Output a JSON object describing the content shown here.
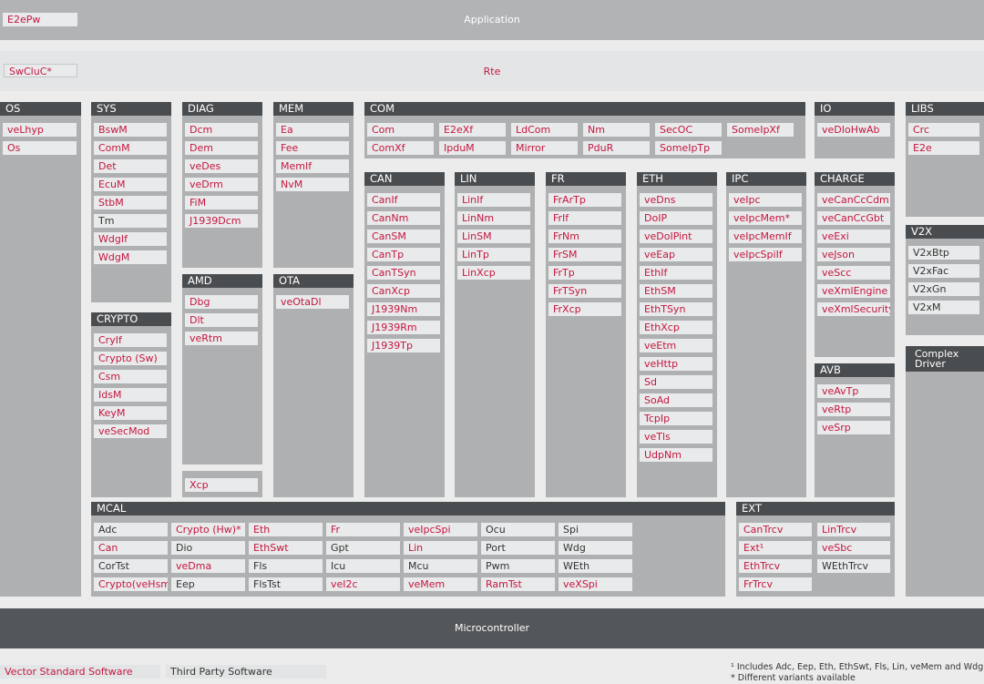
{
  "colors": {
    "vector_red": "#c4173f",
    "third_party": "#333333",
    "module_bg": "#e9eaeb",
    "group_bg": "#aeb0b2",
    "header_bg": "#4a4d50"
  },
  "application": {
    "label": "Application",
    "e2epw": "E2ePw"
  },
  "rte": {
    "label": "Rte",
    "swcluc": "SwCluC*"
  },
  "microcontroller": {
    "label": "Microcontroller"
  },
  "legend": {
    "vector": "Vector Standard Software",
    "third": "Third Party Software"
  },
  "notes": {
    "note1": "¹ Includes Adc, Eep, Eth, EthSwt, Fls, Lin, veMem and Wdg",
    "note2": "* Different variants available"
  },
  "os": {
    "title": "OS",
    "items": [
      {
        "label": "veLhyp",
        "vendor": "vector"
      },
      {
        "label": "Os",
        "vendor": "vector"
      }
    ]
  },
  "sys": {
    "title": "SYS",
    "items": [
      {
        "label": "BswM",
        "vendor": "vector"
      },
      {
        "label": "ComM",
        "vendor": "vector"
      },
      {
        "label": "Det",
        "vendor": "vector"
      },
      {
        "label": "EcuM",
        "vendor": "vector"
      },
      {
        "label": "StbM",
        "vendor": "vector"
      },
      {
        "label": "Tm",
        "vendor": "third"
      },
      {
        "label": "WdgIf",
        "vendor": "vector"
      },
      {
        "label": "WdgM",
        "vendor": "vector"
      }
    ]
  },
  "crypto": {
    "title": "CRYPTO",
    "items": [
      {
        "label": "CryIf",
        "vendor": "vector"
      },
      {
        "label": "Crypto (Sw)",
        "vendor": "vector"
      },
      {
        "label": "Csm",
        "vendor": "vector"
      },
      {
        "label": "IdsM",
        "vendor": "vector"
      },
      {
        "label": "KeyM",
        "vendor": "vector"
      },
      {
        "label": "veSecMod",
        "vendor": "vector"
      }
    ]
  },
  "diag": {
    "title": "DIAG",
    "items": [
      {
        "label": "Dcm",
        "vendor": "vector"
      },
      {
        "label": "Dem",
        "vendor": "vector"
      },
      {
        "label": "veDes",
        "vendor": "vector"
      },
      {
        "label": "veDrm",
        "vendor": "vector"
      },
      {
        "label": "FiM",
        "vendor": "vector"
      },
      {
        "label": "J1939Dcm",
        "vendor": "vector"
      }
    ]
  },
  "amd": {
    "title": "AMD",
    "items": [
      {
        "label": "Dbg",
        "vendor": "vector"
      },
      {
        "label": "Dlt",
        "vendor": "vector"
      },
      {
        "label": "veRtm",
        "vendor": "vector"
      }
    ],
    "xcp": "Xcp"
  },
  "mem": {
    "title": "MEM",
    "items": [
      {
        "label": "Ea",
        "vendor": "vector"
      },
      {
        "label": "Fee",
        "vendor": "vector"
      },
      {
        "label": "MemIf",
        "vendor": "vector"
      },
      {
        "label": "NvM",
        "vendor": "vector"
      }
    ]
  },
  "ota": {
    "title": "OTA",
    "items": [
      {
        "label": "veOtaDl",
        "vendor": "vector"
      }
    ]
  },
  "com": {
    "title": "COM",
    "items": [
      {
        "label": "Com",
        "vendor": "vector"
      },
      {
        "label": "E2eXf",
        "vendor": "vector"
      },
      {
        "label": "LdCom",
        "vendor": "vector"
      },
      {
        "label": "Nm",
        "vendor": "vector"
      },
      {
        "label": "SecOC",
        "vendor": "vector"
      },
      {
        "label": "SomeIpXf",
        "vendor": "vector"
      },
      {
        "label": "ComXf",
        "vendor": "vector"
      },
      {
        "label": "IpduM",
        "vendor": "vector"
      },
      {
        "label": "Mirror",
        "vendor": "vector"
      },
      {
        "label": "PduR",
        "vendor": "vector"
      },
      {
        "label": "SomeIpTp",
        "vendor": "vector"
      }
    ]
  },
  "can": {
    "title": "CAN",
    "items": [
      {
        "label": "CanIf",
        "vendor": "vector"
      },
      {
        "label": "CanNm",
        "vendor": "vector"
      },
      {
        "label": "CanSM",
        "vendor": "vector"
      },
      {
        "label": "CanTp",
        "vendor": "vector"
      },
      {
        "label": "CanTSyn",
        "vendor": "vector"
      },
      {
        "label": "CanXcp",
        "vendor": "vector"
      },
      {
        "label": "J1939Nm",
        "vendor": "vector"
      },
      {
        "label": "J1939Rm",
        "vendor": "vector"
      },
      {
        "label": "J1939Tp",
        "vendor": "vector"
      }
    ]
  },
  "lin": {
    "title": "LIN",
    "items": [
      {
        "label": "LinIf",
        "vendor": "vector"
      },
      {
        "label": "LinNm",
        "vendor": "vector"
      },
      {
        "label": "LinSM",
        "vendor": "vector"
      },
      {
        "label": "LinTp",
        "vendor": "vector"
      },
      {
        "label": "LinXcp",
        "vendor": "vector"
      }
    ]
  },
  "fr": {
    "title": "FR",
    "items": [
      {
        "label": "FrArTp",
        "vendor": "vector"
      },
      {
        "label": "FrIf",
        "vendor": "vector"
      },
      {
        "label": "FrNm",
        "vendor": "vector"
      },
      {
        "label": "FrSM",
        "vendor": "vector"
      },
      {
        "label": "FrTp",
        "vendor": "vector"
      },
      {
        "label": "FrTSyn",
        "vendor": "vector"
      },
      {
        "label": "FrXcp",
        "vendor": "vector"
      }
    ]
  },
  "eth": {
    "title": "ETH",
    "items": [
      {
        "label": "veDns",
        "vendor": "vector"
      },
      {
        "label": "DoIP",
        "vendor": "vector"
      },
      {
        "label": "veDoIPint",
        "vendor": "vector"
      },
      {
        "label": "veEap",
        "vendor": "vector"
      },
      {
        "label": "EthIf",
        "vendor": "vector"
      },
      {
        "label": "EthSM",
        "vendor": "vector"
      },
      {
        "label": "EthTSyn",
        "vendor": "vector"
      },
      {
        "label": "EthXcp",
        "vendor": "vector"
      },
      {
        "label": "veEtm",
        "vendor": "vector"
      },
      {
        "label": "veHttp",
        "vendor": "vector"
      },
      {
        "label": "Sd",
        "vendor": "vector"
      },
      {
        "label": "SoAd",
        "vendor": "vector"
      },
      {
        "label": "TcpIp",
        "vendor": "vector"
      },
      {
        "label": "veTls",
        "vendor": "vector"
      },
      {
        "label": "UdpNm",
        "vendor": "vector"
      }
    ]
  },
  "ipc": {
    "title": "IPC",
    "items": [
      {
        "label": "veIpc",
        "vendor": "vector"
      },
      {
        "label": "veIpcMem*",
        "vendor": "vector"
      },
      {
        "label": "veIpcMemIf",
        "vendor": "vector"
      },
      {
        "label": "veIpcSpiIf",
        "vendor": "vector"
      }
    ]
  },
  "io": {
    "title": "IO",
    "items": [
      {
        "label": "veDIoHwAb",
        "vendor": "vector"
      }
    ]
  },
  "charge": {
    "title": "CHARGE",
    "items": [
      {
        "label": "veCanCcCdm",
        "vendor": "vector"
      },
      {
        "label": "veCanCcGbt",
        "vendor": "vector"
      },
      {
        "label": "veExi",
        "vendor": "vector"
      },
      {
        "label": "veJson",
        "vendor": "vector"
      },
      {
        "label": "veScc",
        "vendor": "vector"
      },
      {
        "label": "veXmlEngine",
        "vendor": "vector"
      },
      {
        "label": "veXmlSecurity",
        "vendor": "vector"
      }
    ]
  },
  "avb": {
    "title": "AVB",
    "items": [
      {
        "label": "veAvTp",
        "vendor": "vector"
      },
      {
        "label": "veRtp",
        "vendor": "vector"
      },
      {
        "label": "veSrp",
        "vendor": "vector"
      }
    ]
  },
  "libs": {
    "title": "LIBS",
    "items": [
      {
        "label": "Crc",
        "vendor": "vector"
      },
      {
        "label": "E2e",
        "vendor": "vector"
      }
    ]
  },
  "v2x": {
    "title": "V2X",
    "items": [
      {
        "label": "V2xBtp",
        "vendor": "third"
      },
      {
        "label": "V2xFac",
        "vendor": "third"
      },
      {
        "label": "V2xGn",
        "vendor": "third"
      },
      {
        "label": "V2xM",
        "vendor": "third"
      }
    ]
  },
  "complex": {
    "title": "Complex Driver"
  },
  "mcal": {
    "title": "MCAL",
    "items": [
      {
        "label": "Adc",
        "vendor": "third"
      },
      {
        "label": "Crypto (Hw)*",
        "vendor": "vector"
      },
      {
        "label": "Eth",
        "vendor": "vector"
      },
      {
        "label": "Fr",
        "vendor": "vector"
      },
      {
        "label": "veIpcSpi",
        "vendor": "vector"
      },
      {
        "label": "Ocu",
        "vendor": "third"
      },
      {
        "label": "Spi",
        "vendor": "third"
      },
      {
        "label": "Can",
        "vendor": "vector"
      },
      {
        "label": "Dio",
        "vendor": "third"
      },
      {
        "label": "EthSwt",
        "vendor": "vector"
      },
      {
        "label": "Gpt",
        "vendor": "third"
      },
      {
        "label": "Lin",
        "vendor": "vector"
      },
      {
        "label": "Port",
        "vendor": "third"
      },
      {
        "label": "Wdg",
        "vendor": "third"
      },
      {
        "label": "CorTst",
        "vendor": "third"
      },
      {
        "label": "veDma",
        "vendor": "vector"
      },
      {
        "label": "Fls",
        "vendor": "third"
      },
      {
        "label": "Icu",
        "vendor": "third"
      },
      {
        "label": "Mcu",
        "vendor": "third"
      },
      {
        "label": "Pwm",
        "vendor": "third"
      },
      {
        "label": "WEth",
        "vendor": "third"
      },
      {
        "label": "Crypto(veHsm)",
        "vendor": "vector"
      },
      {
        "label": "Eep",
        "vendor": "third"
      },
      {
        "label": "FlsTst",
        "vendor": "third"
      },
      {
        "label": "veI2c",
        "vendor": "vector"
      },
      {
        "label": "veMem",
        "vendor": "vector"
      },
      {
        "label": "RamTst",
        "vendor": "vector"
      },
      {
        "label": "veXSpi",
        "vendor": "vector"
      }
    ]
  },
  "ext": {
    "title": "EXT",
    "items": [
      {
        "label": "CanTrcv",
        "vendor": "vector"
      },
      {
        "label": "LinTrcv",
        "vendor": "vector"
      },
      {
        "label": "Ext¹",
        "vendor": "vector"
      },
      {
        "label": "veSbc",
        "vendor": "vector"
      },
      {
        "label": "EthTrcv",
        "vendor": "vector"
      },
      {
        "label": "WEthTrcv",
        "vendor": "third"
      },
      {
        "label": "FrTrcv",
        "vendor": "vector"
      }
    ]
  }
}
